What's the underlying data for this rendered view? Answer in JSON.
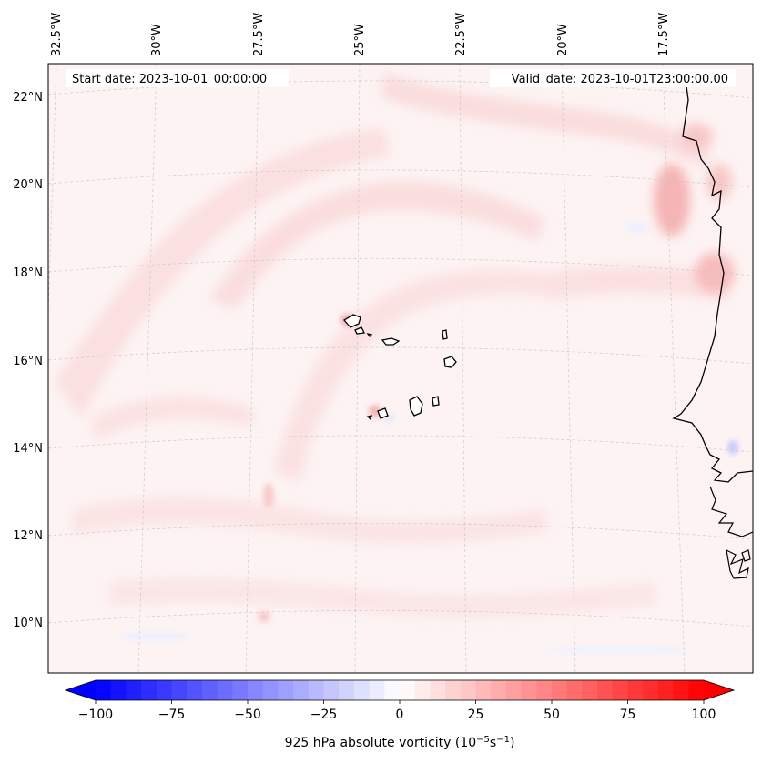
{
  "header": {
    "start_date": "Start date: 2023-10-01_00:00:00",
    "valid_date": "Valid_date: 2023-10-01T23:00:00.00"
  },
  "map": {
    "longitude_labels": [
      "32.5°W",
      "30°W",
      "27.5°W",
      "25°W",
      "22.5°W",
      "20°W",
      "17.5°W"
    ],
    "latitude_labels": [
      "22°N",
      "20°N",
      "18°N",
      "16°N",
      "14°N",
      "12°N",
      "10°N"
    ],
    "field": "925 hPa absolute vorticity",
    "background_color": "#fdf3f3",
    "gridlines": true
  },
  "colorbar": {
    "label": "925 hPa absolute vorticity (10",
    "label_exp1": "−5",
    "label_mid": "s",
    "label_exp2": "−1",
    "label_end": ")",
    "tick_labels": [
      "−100",
      "−75",
      "−50",
      "−25",
      "0",
      "25",
      "50",
      "75",
      "100"
    ],
    "tick_values": [
      -100,
      -75,
      -50,
      -25,
      0,
      25,
      50,
      75,
      100
    ],
    "min": -100,
    "max": 100,
    "low_color": "#0000ff",
    "high_color": "#ff0000",
    "mid_color": "#ffffff"
  }
}
